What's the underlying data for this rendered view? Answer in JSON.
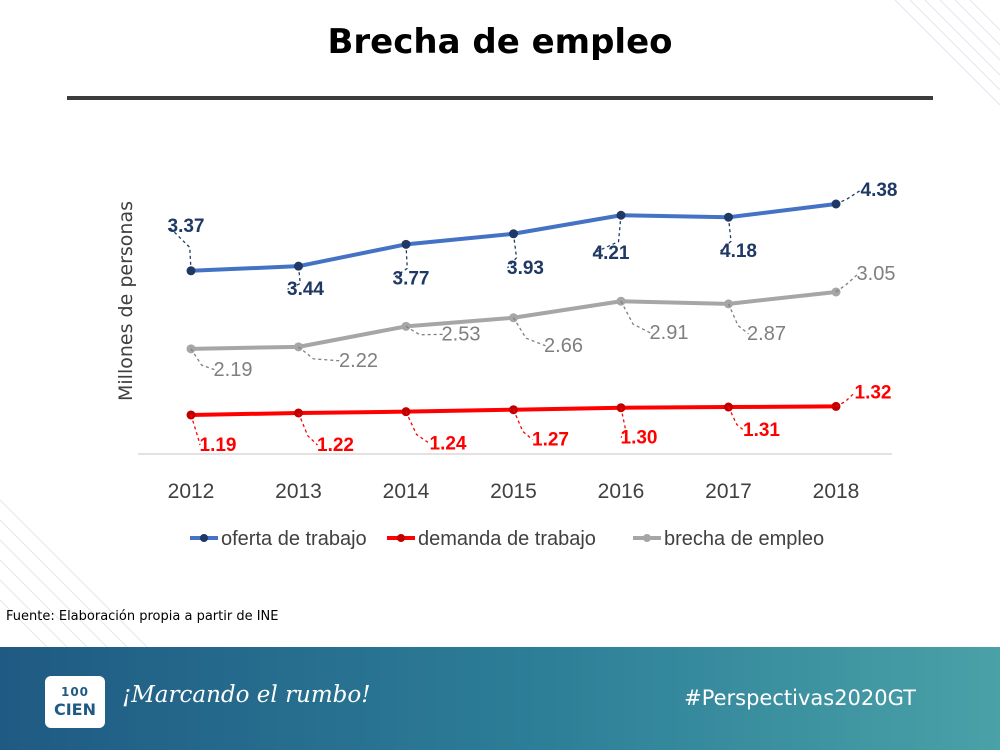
{
  "slide": {
    "title": "Brecha de empleo",
    "source": "Fuente: Elaboración propia a partir de INE"
  },
  "footer": {
    "logo_line1": "100",
    "logo_line2": "CIEN",
    "slogan": "¡Marcando el rumbo!",
    "hashtag": "#Perspectivas2020GT"
  },
  "colors": {
    "oferta": "#4472c4",
    "demanda": "#ff0000",
    "brecha": "#a6a6a6",
    "footer": "#2d7f98"
  },
  "chart_data": {
    "type": "line",
    "title": "",
    "xlabel": "",
    "ylabel": "Millones de personas",
    "categories": [
      "2012",
      "2013",
      "2014",
      "2015",
      "2016",
      "2017",
      "2018"
    ],
    "series": [
      {
        "name": "oferta de trabajo",
        "values": [
          3.37,
          3.44,
          3.77,
          3.93,
          4.21,
          4.18,
          4.38
        ],
        "labels": [
          "3.37",
          "3.44",
          "3.77",
          "3.93",
          "4.21",
          "4.18",
          "4.38"
        ]
      },
      {
        "name": "demanda de trabajo",
        "values": [
          1.19,
          1.22,
          1.24,
          1.27,
          1.3,
          1.31,
          1.32
        ],
        "labels": [
          "1.19",
          "1.22",
          "1.24",
          "1.27",
          "1.30",
          "1.31",
          "1.32"
        ]
      },
      {
        "name": "brecha de empleo",
        "values": [
          2.19,
          2.22,
          2.53,
          2.66,
          2.91,
          2.87,
          3.05
        ],
        "labels": [
          "2.19",
          "2.22",
          "2.53",
          "2.66",
          "2.91",
          "2.87",
          "3.05"
        ]
      }
    ],
    "ylim": [
      0.6,
      5.0
    ],
    "legend": "bottom",
    "grid": false
  }
}
